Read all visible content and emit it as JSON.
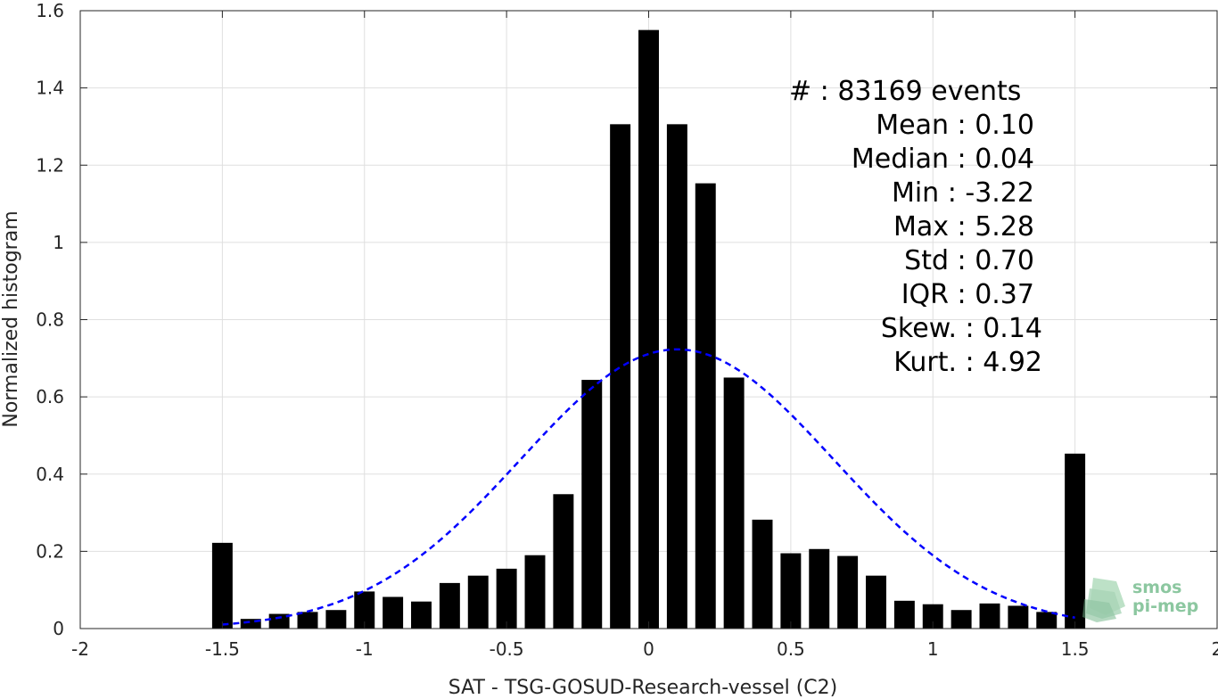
{
  "chart_data": {
    "type": "bar",
    "xlabel": "SAT - TSG-GOSUD-Research-vessel (C2)",
    "ylabel": "Normalized histogram",
    "xlim": [
      -2,
      2
    ],
    "ylim": [
      0,
      1.6
    ],
    "xticks": [
      -2,
      -1.5,
      -1,
      -0.5,
      0,
      0.5,
      1,
      1.5,
      2
    ],
    "xtick_labels": [
      "-2",
      "-1.5",
      "-1",
      "-0.5",
      "0",
      "0.5",
      "1",
      "1.5",
      "2"
    ],
    "yticks": [
      0,
      0.2,
      0.4,
      0.6,
      0.8,
      1,
      1.2,
      1.4,
      1.6
    ],
    "ytick_labels": [
      "0",
      "0.2",
      "0.4",
      "0.6",
      "0.8",
      "1",
      "1.2",
      "1.4",
      "1.6"
    ],
    "grid": true,
    "bar_color": "#000000",
    "bin_width": 0.1,
    "x": [
      -1.5,
      -1.4,
      -1.3,
      -1.2,
      -1.1,
      -1.0,
      -0.9,
      -0.8,
      -0.7,
      -0.6,
      -0.5,
      -0.4,
      -0.3,
      -0.2,
      -0.1,
      0.0,
      0.1,
      0.2,
      0.3,
      0.4,
      0.5,
      0.6,
      0.7,
      0.8,
      0.9,
      1.0,
      1.1,
      1.2,
      1.3,
      1.4,
      1.5
    ],
    "values": [
      0.222,
      0.025,
      0.038,
      0.043,
      0.048,
      0.096,
      0.082,
      0.07,
      0.118,
      0.137,
      0.155,
      0.19,
      0.348,
      0.644,
      1.306,
      1.55,
      1.306,
      1.153,
      0.65,
      0.282,
      0.195,
      0.206,
      0.188,
      0.137,
      0.072,
      0.063,
      0.048,
      0.065,
      0.059,
      0.043,
      0.453
    ],
    "fit_curve": {
      "style": "dashed",
      "color": "#0000ff",
      "mean": 0.1,
      "std": 0.55,
      "peak": 0.723,
      "x_range": [
        -1.5,
        1.5
      ]
    },
    "stats": [
      {
        "label": "#  : 83169 events"
      },
      {
        "label": "Mean : 0.10"
      },
      {
        "label": "Median : 0.04"
      },
      {
        "label": "Min : -3.22"
      },
      {
        "label": "Max : 5.28"
      },
      {
        "label": "Std : 0.70"
      },
      {
        "label": "IQR : 0.37"
      },
      {
        "label": "Skew. : 0.14"
      },
      {
        "label": "Kurt. : 4.92"
      }
    ]
  },
  "logo": {
    "line1": "smos",
    "line2": "pi-mep",
    "color": "#8cc7a0"
  }
}
